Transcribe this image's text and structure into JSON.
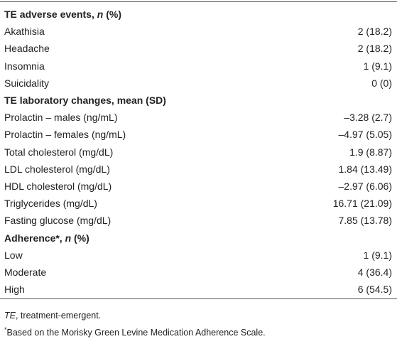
{
  "table": {
    "sections": [
      {
        "title": [
          "TE adverse events, ",
          "n",
          " (%)"
        ],
        "rows": [
          [
            "Akathisia",
            "2 (18.2)"
          ],
          [
            "Headache",
            "2 (18.2)"
          ],
          [
            "Insomnia",
            "1 (9.1)"
          ],
          [
            "Suicidality",
            "0 (0)"
          ]
        ]
      },
      {
        "title": [
          "TE laboratory changes, mean (SD)"
        ],
        "rows": [
          [
            "Prolactin – males (ng/mL)",
            "–3.28 (2.7)"
          ],
          [
            "Prolactin – females (ng/mL)",
            "–4.97 (5.05)"
          ],
          [
            "Total cholesterol (mg/dL)",
            "1.9 (8.87)"
          ],
          [
            "LDL cholesterol (mg/dL)",
            "1.84 (13.49)"
          ],
          [
            "HDL cholesterol (mg/dL)",
            "–2.97 (6.06)"
          ],
          [
            "Triglycerides (mg/dL)",
            "16.71 (21.09)"
          ],
          [
            "Fasting glucose (mg/dL)",
            "7.85 (13.78)"
          ]
        ]
      },
      {
        "title": [
          "Adherence*, ",
          "n",
          " (%)"
        ],
        "rows": [
          [
            "Low",
            "1 (9.1)"
          ],
          [
            "Moderate",
            "4 (36.4)"
          ],
          [
            "High",
            "6 (54.5)"
          ]
        ]
      }
    ],
    "footnotes": [
      [
        "TE",
        ", treatment-emergent."
      ],
      [
        "*",
        "Based on the Morisky Green Levine Medication Adherence Scale."
      ]
    ]
  }
}
